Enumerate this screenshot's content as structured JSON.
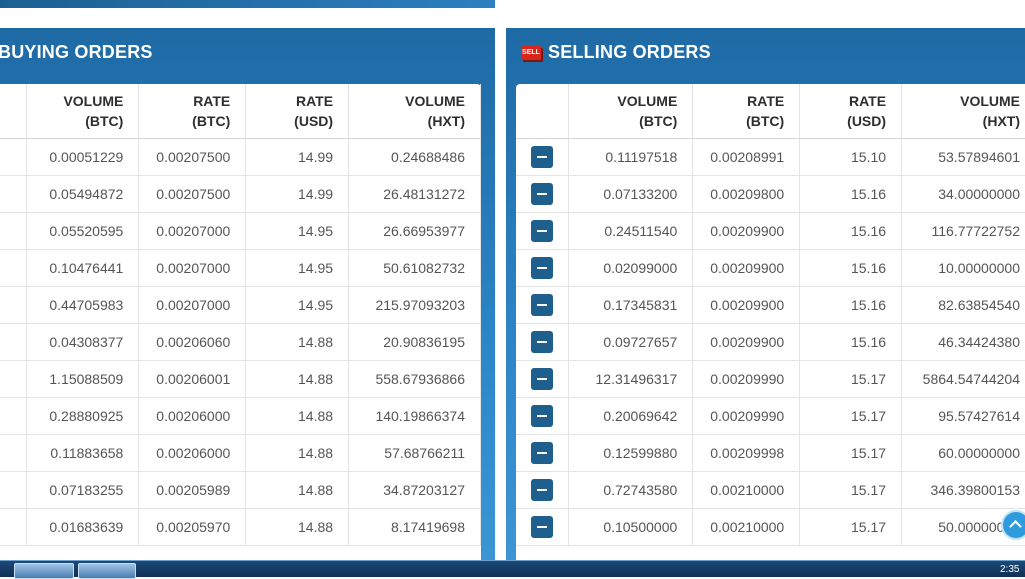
{
  "buying": {
    "title": "BUYING ORDERS",
    "headers": [
      {
        "l1": "VOLUME",
        "l2": "(BTC)"
      },
      {
        "l1": "RATE",
        "l2": "(BTC)"
      },
      {
        "l1": "RATE",
        "l2": "(USD)"
      },
      {
        "l1": "VOLUME",
        "l2": "(HXT)"
      }
    ],
    "rows": [
      [
        "0.00051229",
        "0.00207500",
        "14.99",
        "0.24688486"
      ],
      [
        "0.05494872",
        "0.00207500",
        "14.99",
        "26.48131272"
      ],
      [
        "0.05520595",
        "0.00207000",
        "14.95",
        "26.66953977"
      ],
      [
        "0.10476441",
        "0.00207000",
        "14.95",
        "50.61082732"
      ],
      [
        "0.44705983",
        "0.00207000",
        "14.95",
        "215.97093203"
      ],
      [
        "0.04308377",
        "0.00206060",
        "14.88",
        "20.90836195"
      ],
      [
        "1.15088509",
        "0.00206001",
        "14.88",
        "558.67936866"
      ],
      [
        "0.28880925",
        "0.00206000",
        "14.88",
        "140.19866374"
      ],
      [
        "0.11883658",
        "0.00206000",
        "14.88",
        "57.68766211"
      ],
      [
        "0.07183255",
        "0.00205989",
        "14.88",
        "34.87203127"
      ],
      [
        "0.01683639",
        "0.00205970",
        "14.88",
        "8.17419698"
      ]
    ]
  },
  "selling": {
    "title": "SELLING ORDERS",
    "badge": "SELL",
    "headers": [
      {
        "l1": "VOLUME",
        "l2": "(BTC)"
      },
      {
        "l1": "RATE",
        "l2": "(BTC)"
      },
      {
        "l1": "RATE",
        "l2": "(USD)"
      },
      {
        "l1": "VOLUME",
        "l2": "(HXT)"
      }
    ],
    "rows": [
      [
        "0.11197518",
        "0.00208991",
        "15.10",
        "53.57894601"
      ],
      [
        "0.07133200",
        "0.00209800",
        "15.16",
        "34.00000000"
      ],
      [
        "0.24511540",
        "0.00209900",
        "15.16",
        "116.77722752"
      ],
      [
        "0.02099000",
        "0.00209900",
        "15.16",
        "10.00000000"
      ],
      [
        "0.17345831",
        "0.00209900",
        "15.16",
        "82.63854540"
      ],
      [
        "0.09727657",
        "0.00209900",
        "15.16",
        "46.34424380"
      ],
      [
        "12.31496317",
        "0.00209990",
        "15.17",
        "5864.54744204"
      ],
      [
        "0.20069642",
        "0.00209990",
        "15.17",
        "95.57427614"
      ],
      [
        "0.12599880",
        "0.00209998",
        "15.17",
        "60.00000000"
      ],
      [
        "0.72743580",
        "0.00210000",
        "15.17",
        "346.39800153"
      ],
      [
        "0.10500000",
        "0.00210000",
        "15.17",
        "50.00000000"
      ]
    ]
  },
  "taskbar": {
    "time": "2:35"
  },
  "colors": {
    "header_blue": "#1e6aa5",
    "button_blue": "#1e5f8e",
    "sell_badge": "#d7261e"
  }
}
